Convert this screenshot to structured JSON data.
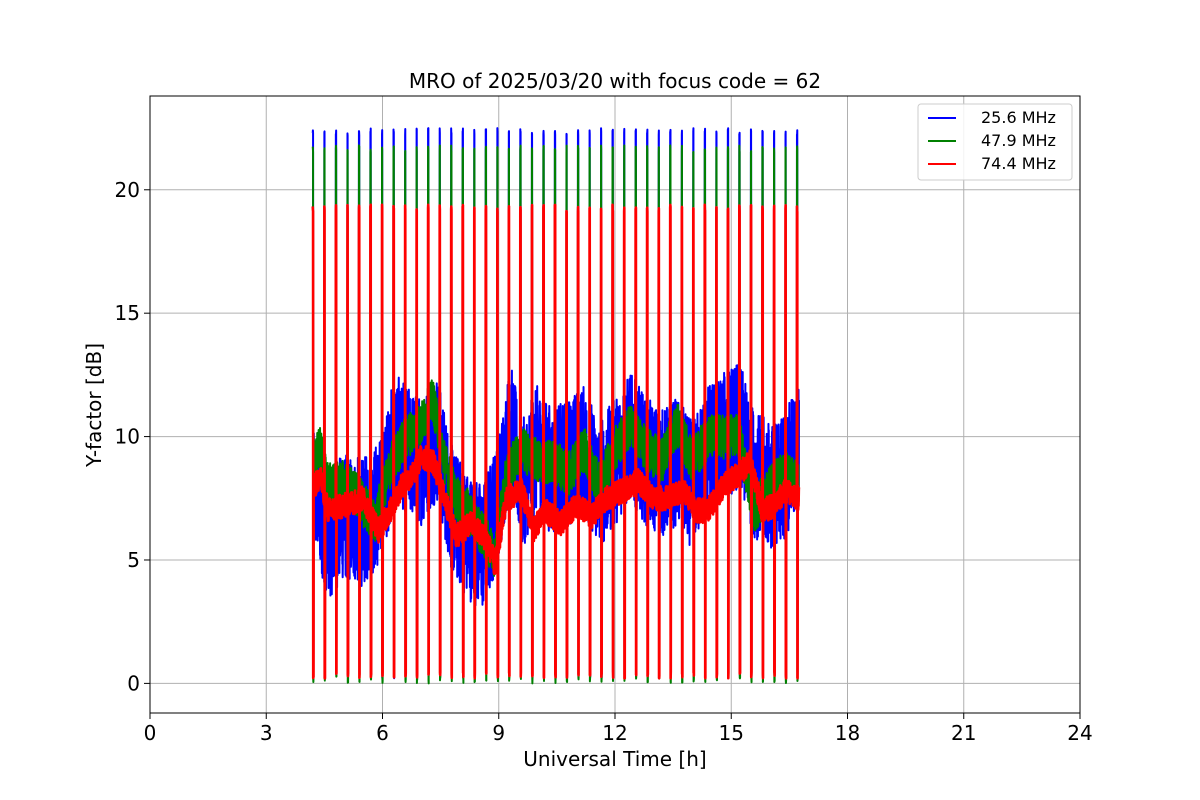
{
  "chart_data": {
    "type": "line",
    "title": "MRO of 2025/03/20 with focus code = 62",
    "xlabel": "Universal Time [h]",
    "ylabel": "Y-factor [dB]",
    "xlim": [
      0,
      24
    ],
    "ylim": [
      -1.2,
      23.8
    ],
    "xticks": [
      0,
      3,
      6,
      9,
      12,
      15,
      18,
      21,
      24
    ],
    "yticks": [
      0,
      5,
      10,
      15,
      20
    ],
    "grid": true,
    "legend_position": "top-right",
    "legend_padding_note": "",
    "series": [
      {
        "name": "25.6 MHz",
        "color": "#0000ff",
        "start": 4.2,
        "end": 16.75,
        "pulse_period": 0.2975,
        "pulse_high": 22.5,
        "pulse_low": 0.2,
        "baseline": [
          [
            4.2,
            8.3
          ],
          [
            4.6,
            6.0
          ],
          [
            5.0,
            6.8
          ],
          [
            5.5,
            6.5
          ],
          [
            6.0,
            7.5
          ],
          [
            6.3,
            10.0
          ],
          [
            6.6,
            9.5
          ],
          [
            7.0,
            9.0
          ],
          [
            7.4,
            10.0
          ],
          [
            7.8,
            7.0
          ],
          [
            8.2,
            6.0
          ],
          [
            8.6,
            5.5
          ],
          [
            9.0,
            7.5
          ],
          [
            9.3,
            10.5
          ],
          [
            9.6,
            8.0
          ],
          [
            10.0,
            9.5
          ],
          [
            10.4,
            8.5
          ],
          [
            10.8,
            9.0
          ],
          [
            11.2,
            9.5
          ],
          [
            11.6,
            8.0
          ],
          [
            12.0,
            9.0
          ],
          [
            12.4,
            10.0
          ],
          [
            12.8,
            9.0
          ],
          [
            13.2,
            8.5
          ],
          [
            13.6,
            9.0
          ],
          [
            14.0,
            8.0
          ],
          [
            14.4,
            9.5
          ],
          [
            14.8,
            10.0
          ],
          [
            15.2,
            10.5
          ],
          [
            15.6,
            8.5
          ],
          [
            16.0,
            8.0
          ],
          [
            16.4,
            8.5
          ],
          [
            16.75,
            9.5
          ]
        ]
      },
      {
        "name": "47.9 MHz",
        "color": "#008000",
        "start": 4.2,
        "end": 16.75,
        "pulse_period": 0.2975,
        "pulse_high": 21.8,
        "pulse_low": 0.0,
        "baseline": [
          [
            4.2,
            9.0
          ],
          [
            4.4,
            9.6
          ],
          [
            4.6,
            8.0
          ],
          [
            5.0,
            8.2
          ],
          [
            5.4,
            7.5
          ],
          [
            5.8,
            6.5
          ],
          [
            6.2,
            8.8
          ],
          [
            6.6,
            10.0
          ],
          [
            7.0,
            10.5
          ],
          [
            7.3,
            11.5
          ],
          [
            7.6,
            9.0
          ],
          [
            7.9,
            7.5
          ],
          [
            8.2,
            7.0
          ],
          [
            8.6,
            6.0
          ],
          [
            8.9,
            5.2
          ],
          [
            9.2,
            8.5
          ],
          [
            9.6,
            9.5
          ],
          [
            10.0,
            9.0
          ],
          [
            10.4,
            9.0
          ],
          [
            10.8,
            8.5
          ],
          [
            11.2,
            9.5
          ],
          [
            11.6,
            8.0
          ],
          [
            12.0,
            9.5
          ],
          [
            12.4,
            10.5
          ],
          [
            12.8,
            9.5
          ],
          [
            13.2,
            9.0
          ],
          [
            13.6,
            10.5
          ],
          [
            14.0,
            9.0
          ],
          [
            14.4,
            10.0
          ],
          [
            14.8,
            10.0
          ],
          [
            15.2,
            10.0
          ],
          [
            15.6,
            7.0
          ],
          [
            16.0,
            8.0
          ],
          [
            16.4,
            8.5
          ],
          [
            16.75,
            8.0
          ]
        ]
      },
      {
        "name": "74.4 MHz",
        "color": "#ff0000",
        "start": 4.2,
        "end": 16.75,
        "pulse_period": 0.2975,
        "pulse_high": 19.4,
        "pulse_low": 0.2,
        "baseline": [
          [
            4.2,
            8.0
          ],
          [
            4.4,
            8.3
          ],
          [
            4.6,
            7.0
          ],
          [
            5.0,
            7.2
          ],
          [
            5.5,
            7.5
          ],
          [
            5.9,
            6.2
          ],
          [
            6.2,
            7.0
          ],
          [
            6.5,
            8.0
          ],
          [
            6.8,
            8.5
          ],
          [
            7.0,
            9.2
          ],
          [
            7.3,
            9.0
          ],
          [
            7.6,
            7.5
          ],
          [
            7.9,
            6.0
          ],
          [
            8.3,
            6.5
          ],
          [
            8.7,
            5.8
          ],
          [
            8.9,
            4.8
          ],
          [
            9.2,
            7.5
          ],
          [
            9.6,
            7.8
          ],
          [
            9.9,
            6.2
          ],
          [
            10.2,
            7.0
          ],
          [
            10.6,
            6.5
          ],
          [
            11.0,
            7.2
          ],
          [
            11.4,
            6.8
          ],
          [
            11.8,
            7.5
          ],
          [
            12.2,
            7.8
          ],
          [
            12.6,
            8.2
          ],
          [
            13.0,
            7.5
          ],
          [
            13.4,
            7.5
          ],
          [
            13.8,
            7.8
          ],
          [
            14.1,
            7.0
          ],
          [
            14.4,
            7.0
          ],
          [
            14.8,
            8.0
          ],
          [
            15.2,
            8.5
          ],
          [
            15.5,
            9.0
          ],
          [
            15.8,
            7.0
          ],
          [
            16.1,
            7.2
          ],
          [
            16.4,
            7.8
          ],
          [
            16.75,
            7.5
          ]
        ]
      }
    ]
  }
}
